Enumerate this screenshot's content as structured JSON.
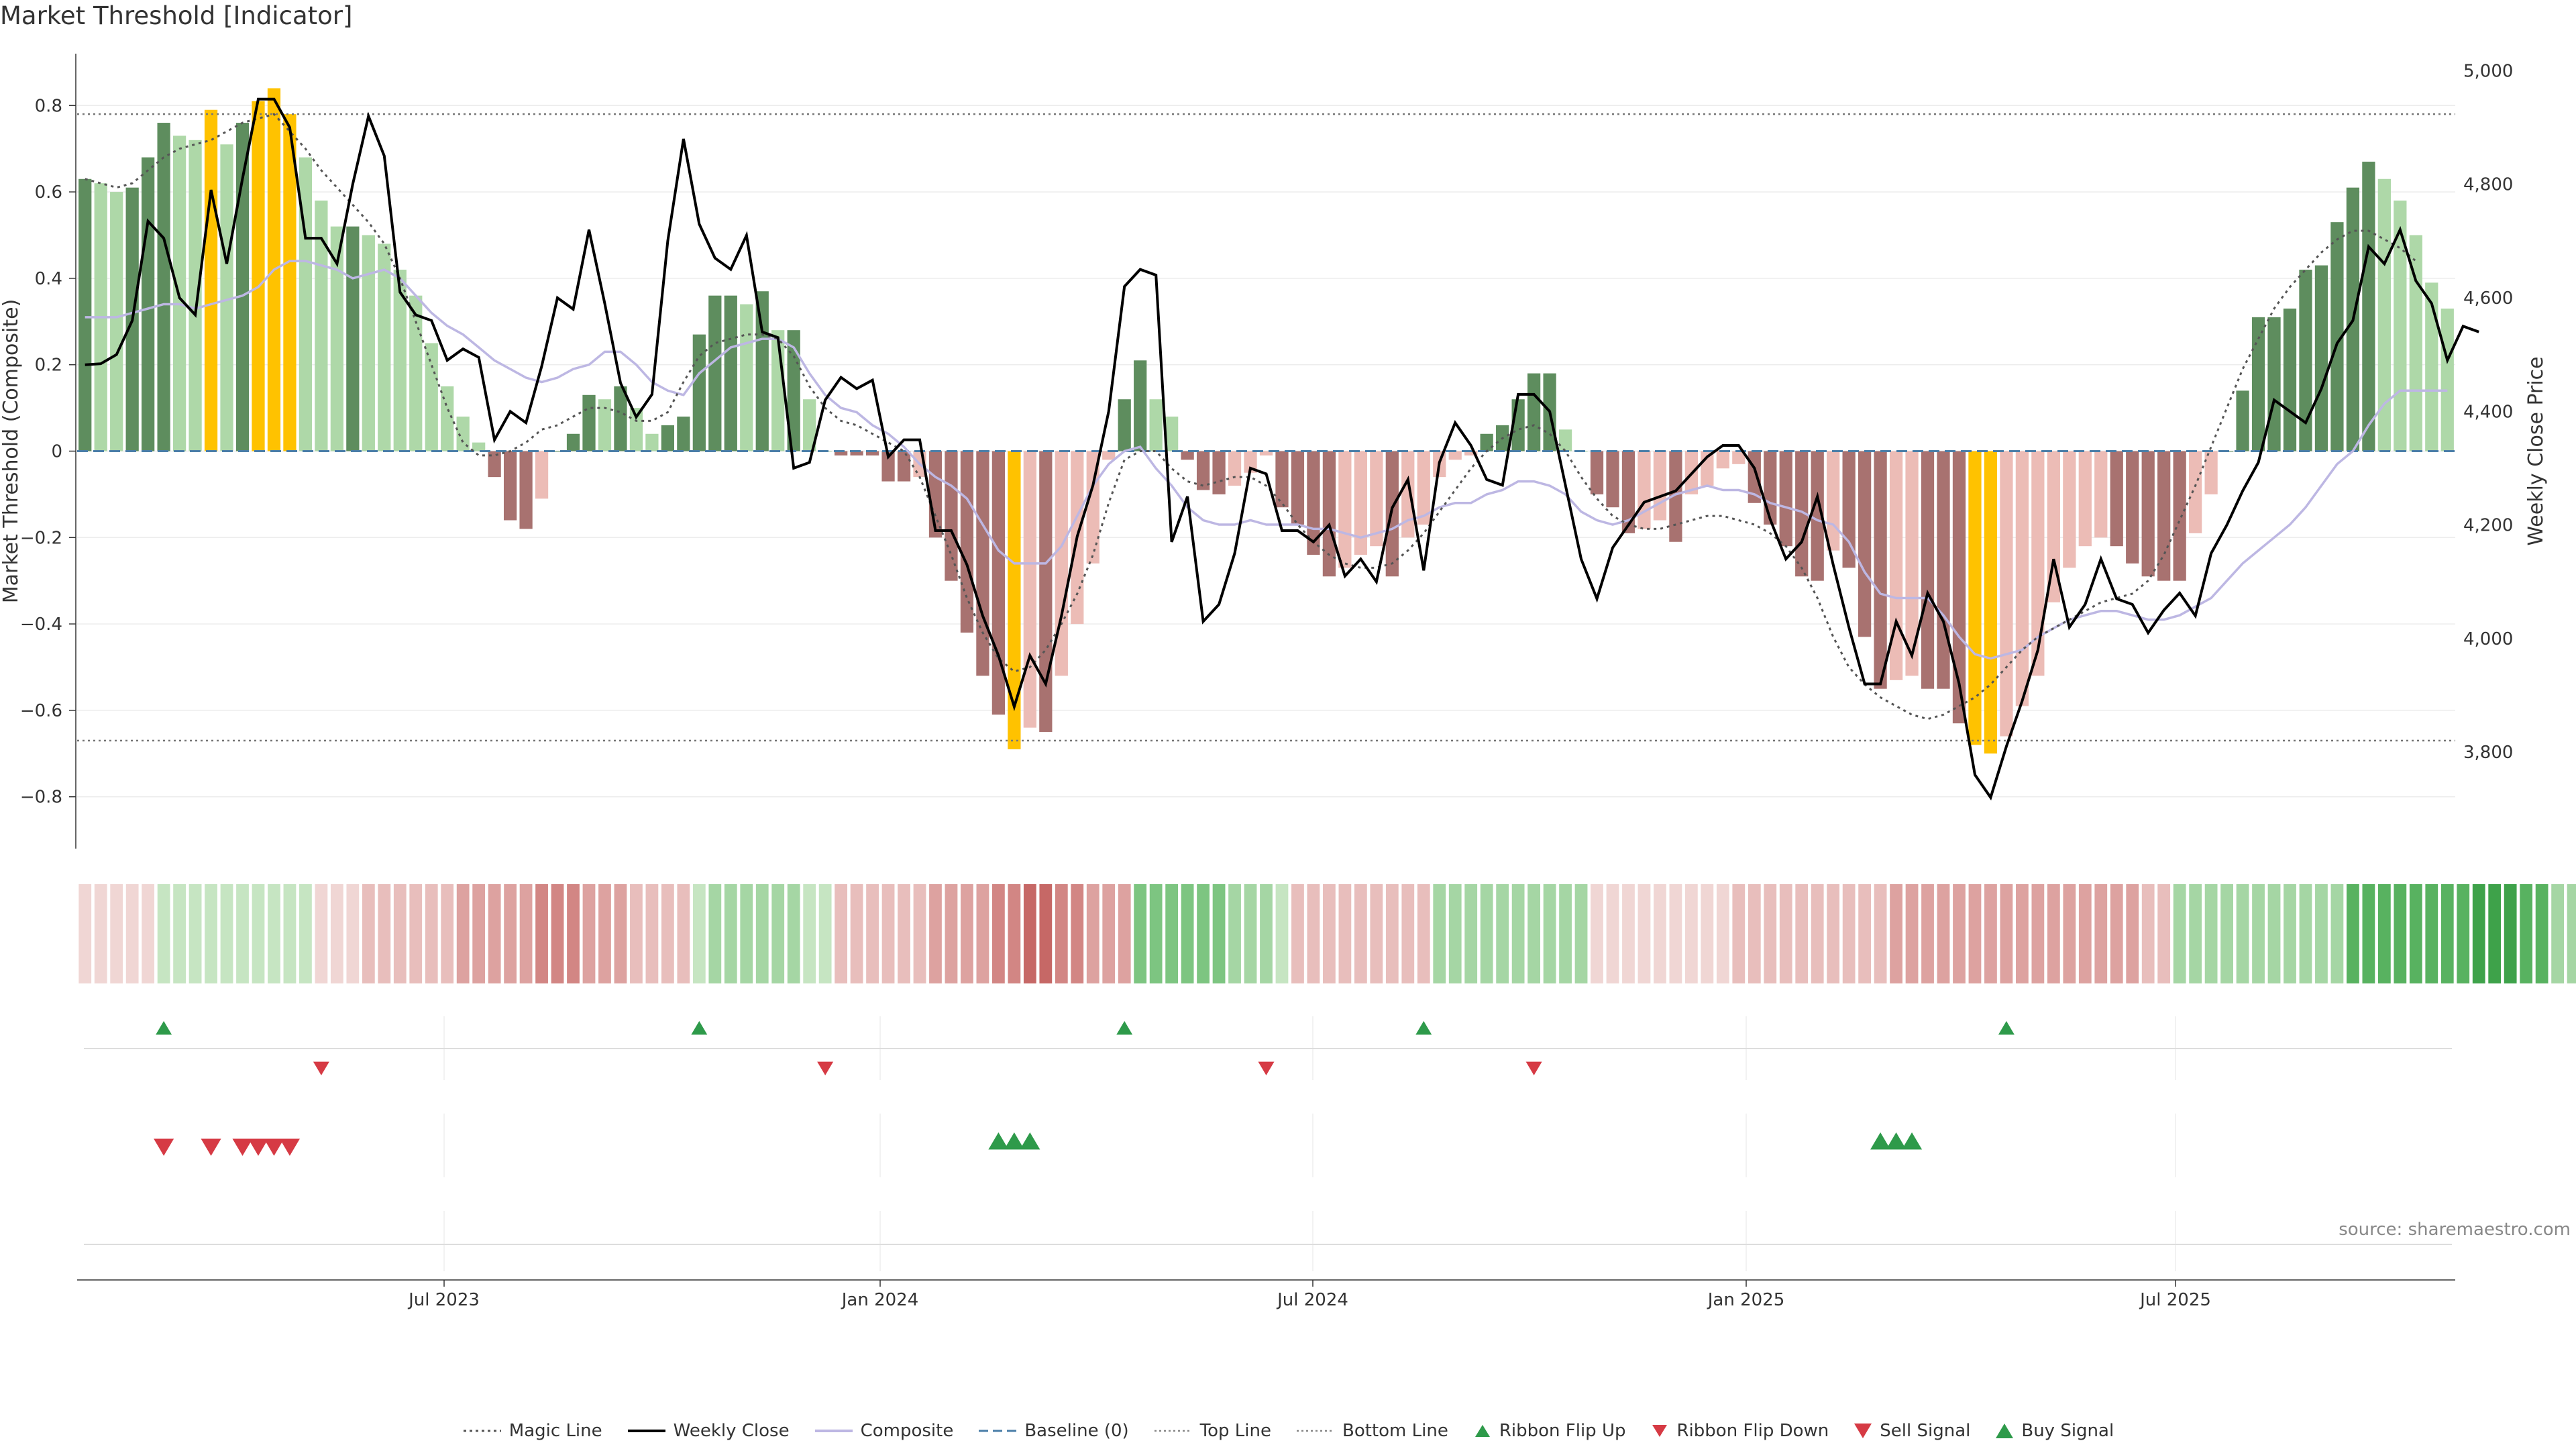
{
  "title": "Market Threshold [Indicator]",
  "source_text": "source: sharemaestro.com",
  "colors": {
    "bull_strong": "#5e8d5e",
    "bull_light": "#aed8a8",
    "bear_strong": "#a87270",
    "bear_light": "#ecbcb6",
    "extreme": "#ffc200",
    "composite": "#bdb7e3",
    "weekly": "#000000",
    "magic": "#555555",
    "baseline": "#4a7ea8",
    "buy": "#2e9a4a",
    "sell": "#d63a44"
  },
  "chart_data": {
    "type": "bar",
    "title": "Market Threshold [Indicator]",
    "ylabel": "Market Threshold (Composite)",
    "y2label": "Weekly Close Price",
    "ylim": [
      -0.92,
      0.92
    ],
    "y2lim": [
      3630,
      5030
    ],
    "yticks": [
      "0.8",
      "0.6",
      "0.4",
      "0.2",
      "0",
      "−0.2",
      "−0.4",
      "−0.6",
      "−0.8"
    ],
    "y2ticks": [
      "5,000",
      "4,800",
      "4,600",
      "4,400",
      "4,200",
      "4,000",
      "3,800"
    ],
    "xticks": [
      "Jul 2023",
      "Jan 2024",
      "Jul 2024",
      "Jan 2025",
      "Jul 2025"
    ],
    "top_line": 0.78,
    "bottom_line": -0.67,
    "composite_bars": [
      0.63,
      0.62,
      0.6,
      0.61,
      0.68,
      0.76,
      0.73,
      0.72,
      0.79,
      0.71,
      0.76,
      0.81,
      0.84,
      0.78,
      0.68,
      0.58,
      0.52,
      0.52,
      0.5,
      0.48,
      0.42,
      0.36,
      0.25,
      0.15,
      0.08,
      0.02,
      -0.06,
      -0.16,
      -0.18,
      -0.11,
      0.0,
      0.04,
      0.13,
      0.12,
      0.15,
      0.1,
      0.04,
      0.06,
      0.08,
      0.27,
      0.36,
      0.36,
      0.34,
      0.37,
      0.28,
      0.28,
      0.12,
      0.0,
      -0.01,
      -0.01,
      -0.01,
      -0.07,
      -0.07,
      -0.06,
      -0.2,
      -0.3,
      -0.42,
      -0.52,
      -0.61,
      -0.69,
      -0.64,
      -0.65,
      -0.52,
      -0.4,
      -0.26,
      -0.02,
      0.12,
      0.21,
      0.12,
      0.08,
      -0.02,
      -0.09,
      -0.1,
      -0.08,
      -0.05,
      -0.01,
      -0.13,
      -0.17,
      -0.24,
      -0.29,
      -0.27,
      -0.24,
      -0.22,
      -0.29,
      -0.2,
      -0.17,
      -0.06,
      -0.02,
      -0.01,
      0.04,
      0.06,
      0.12,
      0.18,
      0.18,
      0.05,
      0.0,
      -0.1,
      -0.13,
      -0.19,
      -0.18,
      -0.16,
      -0.21,
      -0.1,
      -0.08,
      -0.04,
      -0.03,
      -0.12,
      -0.17,
      -0.22,
      -0.29,
      -0.3,
      -0.23,
      -0.27,
      -0.43,
      -0.55,
      -0.53,
      -0.52,
      -0.55,
      -0.55,
      -0.63,
      -0.68,
      -0.7,
      -0.66,
      -0.59,
      -0.52,
      -0.35,
      -0.27,
      -0.22,
      -0.2,
      -0.22,
      -0.26,
      -0.29,
      -0.3,
      -0.3,
      -0.19,
      -0.1,
      0.0,
      0.14,
      0.31,
      0.31,
      0.33,
      0.42,
      0.43,
      0.53,
      0.61,
      0.67,
      0.63,
      0.58,
      0.5,
      0.39,
      0.33
    ],
    "weekly_close": [
      4482,
      4484,
      4500,
      4560,
      4735,
      4705,
      4600,
      4570,
      4790,
      4660,
      4810,
      4950,
      4950,
      4900,
      4705,
      4705,
      4660,
      4800,
      4920,
      4850,
      4610,
      4570,
      4560,
      4490,
      4510,
      4495,
      4350,
      4400,
      4380,
      4480,
      4600,
      4580,
      4720,
      4590,
      4450,
      4390,
      4430,
      4700,
      4880,
      4730,
      4670,
      4650,
      4710,
      4540,
      4530,
      4300,
      4310,
      4420,
      4460,
      4440,
      4455,
      4320,
      4350,
      4350,
      4190,
      4190,
      4130,
      4040,
      3970,
      3880,
      3970,
      3920,
      4040,
      4180,
      4270,
      4400,
      4620,
      4650,
      4640,
      4170,
      4250,
      4030,
      4060,
      4150,
      4300,
      4290,
      4190,
      4190,
      4170,
      4200,
      4110,
      4140,
      4100,
      4230,
      4280,
      4120,
      4310,
      4380,
      4340,
      4280,
      4270,
      4430,
      4430,
      4400,
      4270,
      4140,
      4070,
      4160,
      4200,
      4240,
      4250,
      4260,
      4290,
      4320,
      4340,
      4340,
      4300,
      4210,
      4140,
      4170,
      4250,
      4130,
      4020,
      3920,
      3920,
      4030,
      3970,
      4080,
      4030,
      3920,
      3760,
      3720,
      3810,
      3890,
      3980,
      4140,
      4020,
      4060,
      4140,
      4070,
      4060,
      4010,
      4050,
      4080,
      4040,
      4150,
      4200,
      4260,
      4310,
      4420,
      4400,
      4380,
      4440,
      4520,
      4560,
      4690,
      4660,
      4720,
      4630,
      4590,
      4490,
      4550,
      4540
    ],
    "composite_line": [
      0.31,
      0.31,
      0.31,
      0.32,
      0.33,
      0.34,
      0.34,
      0.33,
      0.34,
      0.35,
      0.36,
      0.38,
      0.42,
      0.44,
      0.44,
      0.43,
      0.42,
      0.4,
      0.41,
      0.42,
      0.4,
      0.36,
      0.32,
      0.29,
      0.27,
      0.24,
      0.21,
      0.19,
      0.17,
      0.16,
      0.17,
      0.19,
      0.2,
      0.23,
      0.23,
      0.2,
      0.16,
      0.14,
      0.13,
      0.18,
      0.21,
      0.24,
      0.25,
      0.26,
      0.26,
      0.24,
      0.18,
      0.13,
      0.1,
      0.09,
      0.06,
      0.04,
      0.01,
      -0.03,
      -0.06,
      -0.08,
      -0.11,
      -0.17,
      -0.23,
      -0.26,
      -0.26,
      -0.26,
      -0.22,
      -0.15,
      -0.08,
      -0.03,
      0.0,
      0.01,
      -0.04,
      -0.08,
      -0.13,
      -0.16,
      -0.17,
      -0.17,
      -0.16,
      -0.17,
      -0.17,
      -0.17,
      -0.18,
      -0.18,
      -0.19,
      -0.2,
      -0.19,
      -0.18,
      -0.16,
      -0.15,
      -0.13,
      -0.12,
      -0.12,
      -0.1,
      -0.09,
      -0.07,
      -0.07,
      -0.08,
      -0.1,
      -0.14,
      -0.16,
      -0.17,
      -0.16,
      -0.14,
      -0.12,
      -0.1,
      -0.09,
      -0.08,
      -0.09,
      -0.09,
      -0.1,
      -0.12,
      -0.13,
      -0.14,
      -0.16,
      -0.17,
      -0.21,
      -0.28,
      -0.33,
      -0.34,
      -0.34,
      -0.34,
      -0.38,
      -0.43,
      -0.47,
      -0.48,
      -0.47,
      -0.46,
      -0.43,
      -0.41,
      -0.39,
      -0.38,
      -0.37,
      -0.37,
      -0.38,
      -0.39,
      -0.39,
      -0.38,
      -0.36,
      -0.34,
      -0.3,
      -0.26,
      -0.23,
      -0.2,
      -0.17,
      -0.13,
      -0.08,
      -0.03,
      0.0,
      0.06,
      0.11,
      0.14,
      0.14,
      0.14,
      0.14
    ],
    "magic_line": [
      0.63,
      0.62,
      0.61,
      0.62,
      0.65,
      0.68,
      0.7,
      0.71,
      0.72,
      0.74,
      0.76,
      0.77,
      0.78,
      0.74,
      0.7,
      0.65,
      0.61,
      0.57,
      0.53,
      0.48,
      0.4,
      0.3,
      0.2,
      0.1,
      0.02,
      -0.01,
      -0.01,
      0.0,
      0.02,
      0.05,
      0.06,
      0.08,
      0.1,
      0.1,
      0.09,
      0.07,
      0.07,
      0.09,
      0.16,
      0.22,
      0.25,
      0.26,
      0.27,
      0.27,
      0.26,
      0.22,
      0.15,
      0.1,
      0.07,
      0.06,
      0.04,
      0.02,
      0.0,
      -0.06,
      -0.15,
      -0.24,
      -0.34,
      -0.42,
      -0.48,
      -0.51,
      -0.5,
      -0.46,
      -0.4,
      -0.33,
      -0.24,
      -0.12,
      -0.02,
      0.0,
      0.0,
      -0.04,
      -0.07,
      -0.08,
      -0.07,
      -0.06,
      -0.06,
      -0.08,
      -0.12,
      -0.17,
      -0.21,
      -0.24,
      -0.26,
      -0.27,
      -0.27,
      -0.26,
      -0.23,
      -0.19,
      -0.14,
      -0.09,
      -0.04,
      0.0,
      0.03,
      0.05,
      0.06,
      0.04,
      0.0,
      -0.06,
      -0.11,
      -0.15,
      -0.17,
      -0.18,
      -0.18,
      -0.17,
      -0.16,
      -0.15,
      -0.15,
      -0.16,
      -0.17,
      -0.19,
      -0.22,
      -0.27,
      -0.34,
      -0.43,
      -0.5,
      -0.54,
      -0.57,
      -0.59,
      -0.61,
      -0.62,
      -0.61,
      -0.59,
      -0.57,
      -0.54,
      -0.5,
      -0.46,
      -0.43,
      -0.41,
      -0.39,
      -0.37,
      -0.35,
      -0.34,
      -0.33,
      -0.3,
      -0.24,
      -0.16,
      -0.08,
      0.01,
      0.1,
      0.19,
      0.26,
      0.33,
      0.38,
      0.42,
      0.46,
      0.49,
      0.51,
      0.51,
      0.49,
      0.47,
      0.44
    ],
    "ribbon_levels": [
      -1,
      -1,
      -1,
      -1,
      -1,
      1,
      1,
      1,
      1,
      1,
      1,
      1,
      1,
      1,
      1,
      -1,
      -1,
      -1,
      -2,
      -2,
      -2,
      -2,
      -2,
      -2,
      -3,
      -3,
      -3,
      -3,
      -3,
      -4,
      -4,
      -4,
      -3,
      -3,
      -3,
      -2,
      -2,
      -2,
      -2,
      1,
      2,
      2,
      2,
      2,
      2,
      2,
      1,
      1,
      -2,
      -2,
      -2,
      -2,
      -2,
      -2,
      -3,
      -3,
      -3,
      -3,
      -4,
      -4,
      -5,
      -5,
      -4,
      -4,
      -3,
      -3,
      -3,
      3,
      3,
      3,
      3,
      3,
      3,
      2,
      2,
      2,
      1,
      -2,
      -2,
      -2,
      -2,
      -2,
      -2,
      -2,
      -2,
      -2,
      2,
      2,
      2,
      2,
      2,
      2,
      2,
      2,
      2,
      2,
      -1,
      -1,
      -1,
      -1,
      -1,
      -1,
      -1,
      -1,
      -1,
      -2,
      -2,
      -2,
      -2,
      -2,
      -2,
      -2,
      -2,
      -2,
      -2,
      -3,
      -3,
      -3,
      -3,
      -3,
      -3,
      -3,
      -3,
      -3,
      -3,
      -3,
      -3,
      -3,
      -3,
      -3,
      -3,
      -2,
      -2,
      2,
      2,
      2,
      2,
      2,
      2,
      2,
      2,
      2,
      2,
      2,
      4,
      4,
      4,
      4,
      4,
      4,
      4,
      4,
      5,
      5,
      5,
      4,
      4,
      2,
      2
    ],
    "ribbon_flip_up": [
      5,
      39,
      66,
      85,
      122
    ],
    "ribbon_flip_down": [
      15,
      47,
      75,
      92
    ],
    "sell_signals": [
      5,
      8,
      10,
      11,
      12,
      13
    ],
    "buy_signals": [
      58,
      59,
      60,
      114,
      115,
      116
    ],
    "legend": [
      {
        "label": "Magic Line",
        "kind": "magic"
      },
      {
        "label": "Weekly Close",
        "kind": "weekly"
      },
      {
        "label": "Composite",
        "kind": "composite"
      },
      {
        "label": "Baseline (0)",
        "kind": "baseline"
      },
      {
        "label": "Top Line",
        "kind": "topline"
      },
      {
        "label": "Bottom Line",
        "kind": "bottomline"
      },
      {
        "label": "Ribbon Flip Up",
        "kind": "flipup"
      },
      {
        "label": "Ribbon Flip Down",
        "kind": "flipdown"
      },
      {
        "label": "Sell Signal",
        "kind": "sell"
      },
      {
        "label": "Buy Signal",
        "kind": "buy"
      }
    ]
  }
}
